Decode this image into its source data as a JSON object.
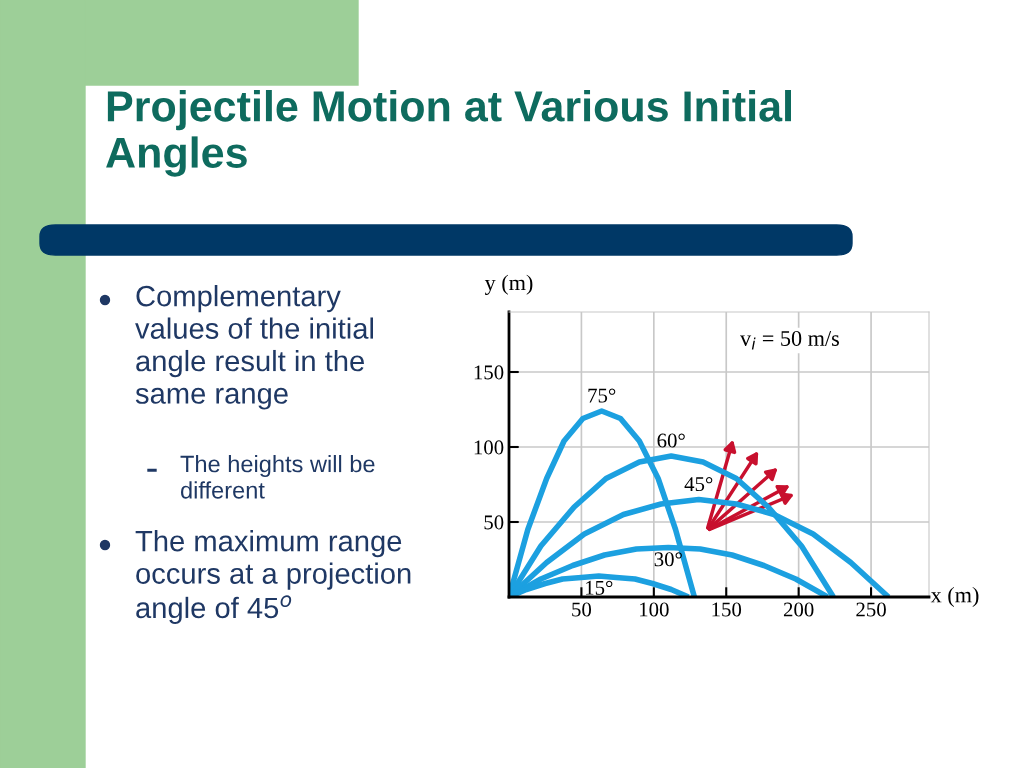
{
  "chart_data": {
    "type": "line",
    "title": "Projectile Motion at Various Initial Angles",
    "xlabel": "x (m)",
    "ylabel": "y (m)",
    "xlim": [
      0,
      290
    ],
    "ylim": [
      0,
      190
    ],
    "xticks": [
      50,
      100,
      150,
      200,
      250
    ],
    "yticks": [
      50,
      100,
      150
    ],
    "grid": true,
    "legend": false,
    "marker": "none",
    "line_style": "solid",
    "series": [
      {
        "name": "75°",
        "color": "#1ca0e0",
        "x": [
          0,
          13,
          26,
          38,
          51,
          64,
          77,
          90,
          103,
          115,
          128
        ],
        "values": [
          0,
          45,
          79,
          104,
          119,
          124,
          119,
          104,
          79,
          45,
          0
        ]
      },
      {
        "name": "60°",
        "color": "#1ca0e0",
        "x": [
          0,
          22,
          45,
          67,
          90,
          112,
          134,
          157,
          179,
          202,
          224
        ],
        "values": [
          0,
          34,
          60,
          79,
          90,
          94,
          90,
          79,
          60,
          34,
          0
        ]
      },
      {
        "name": "45°",
        "color": "#1ca0e0",
        "x": [
          0,
          26,
          52,
          79,
          105,
          131,
          157,
          183,
          210,
          236,
          262
        ],
        "values": [
          0,
          23,
          42,
          55,
          62,
          65,
          62,
          55,
          42,
          23,
          0
        ]
      },
      {
        "name": "30°",
        "color": "#1ca0e0",
        "x": [
          0,
          22,
          44,
          66,
          88,
          110,
          132,
          154,
          176,
          198,
          220
        ],
        "values": [
          0,
          12,
          21,
          28,
          32,
          33,
          32,
          28,
          21,
          12,
          0
        ]
      },
      {
        "name": "15°",
        "color": "#1ca0e0",
        "x": [
          0,
          12,
          25,
          37,
          50,
          62,
          74,
          87,
          99,
          112,
          124
        ],
        "values": [
          0,
          5,
          9,
          12,
          13,
          14,
          13,
          12,
          9,
          5,
          0
        ]
      }
    ],
    "annotations": [
      "v$_{i}$ = 50 m/s",
      "Complementary values of the initial angle result in the same range",
      "The heights will be different",
      "The maximum range occurs at a projection angle of 45$^{o}$"
    ]
  }
}
